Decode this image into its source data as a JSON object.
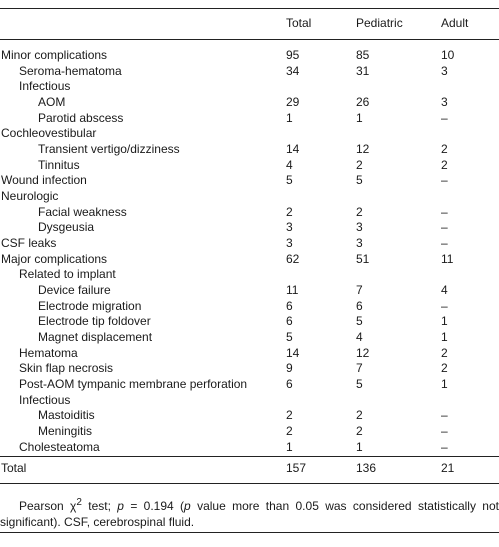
{
  "table": {
    "headers": [
      "",
      "Total",
      "Pediatric",
      "Adult"
    ],
    "rows": [
      {
        "label": "Minor complications",
        "level": 0,
        "total": "95",
        "pediatric": "85",
        "adult": "10"
      },
      {
        "label": "Seroma-hematoma",
        "level": 1,
        "total": "34",
        "pediatric": "31",
        "adult": "3"
      },
      {
        "label": "Infectious",
        "level": 1,
        "total": "",
        "pediatric": "",
        "adult": ""
      },
      {
        "label": "AOM",
        "level": 2,
        "total": "29",
        "pediatric": "26",
        "adult": "3"
      },
      {
        "label": "Parotid abscess",
        "level": 2,
        "total": "1",
        "pediatric": "1",
        "adult": "–"
      },
      {
        "label": "Cochleovestibular",
        "level": 0,
        "total": "",
        "pediatric": "",
        "adult": ""
      },
      {
        "label": "Transient vertigo/dizziness",
        "level": 2,
        "total": "14",
        "pediatric": "12",
        "adult": "2"
      },
      {
        "label": "Tinnitus",
        "level": 2,
        "total": "4",
        "pediatric": "2",
        "adult": "2"
      },
      {
        "label": "Wound infection",
        "level": 0,
        "total": "5",
        "pediatric": "5",
        "adult": "–"
      },
      {
        "label": "Neurologic",
        "level": 0,
        "total": "",
        "pediatric": "",
        "adult": ""
      },
      {
        "label": "Facial weakness",
        "level": 2,
        "total": "2",
        "pediatric": "2",
        "adult": "–"
      },
      {
        "label": "Dysgeusia",
        "level": 2,
        "total": "3",
        "pediatric": "3",
        "adult": "–"
      },
      {
        "label": "CSF leaks",
        "level": 0,
        "total": "3",
        "pediatric": "3",
        "adult": "–"
      },
      {
        "label": "Major complications",
        "level": 0,
        "total": "62",
        "pediatric": "51",
        "adult": "11"
      },
      {
        "label": "Related to implant",
        "level": 1,
        "total": "",
        "pediatric": "",
        "adult": ""
      },
      {
        "label": "Device failure",
        "level": 2,
        "total": "11",
        "pediatric": "7",
        "adult": "4"
      },
      {
        "label": "Electrode migration",
        "level": 2,
        "total": "6",
        "pediatric": "6",
        "adult": "–"
      },
      {
        "label": "Electrode tip foldover",
        "level": 2,
        "total": "6",
        "pediatric": "5",
        "adult": "1"
      },
      {
        "label": "Magnet displacement",
        "level": 2,
        "total": "5",
        "pediatric": "4",
        "adult": "1"
      },
      {
        "label": "Hematoma",
        "level": 1,
        "total": "14",
        "pediatric": "12",
        "adult": "2"
      },
      {
        "label": "Skin flap necrosis",
        "level": 1,
        "total": "9",
        "pediatric": "7",
        "adult": "2"
      },
      {
        "label": "Post-AOM tympanic membrane perforation",
        "level": 1,
        "total": "6",
        "pediatric": "5",
        "adult": "1"
      },
      {
        "label": "Infectious",
        "level": 1,
        "total": "",
        "pediatric": "",
        "adult": ""
      },
      {
        "label": "Mastoiditis",
        "level": 2,
        "total": "2",
        "pediatric": "2",
        "adult": "–"
      },
      {
        "label": "Meningitis",
        "level": 2,
        "total": "2",
        "pediatric": "2",
        "adult": "–"
      },
      {
        "label": "Cholesteatoma",
        "level": 1,
        "total": "1",
        "pediatric": "1",
        "adult": "–"
      }
    ],
    "total_row": {
      "label": "Total",
      "total": "157",
      "pediatric": "136",
      "adult": "21"
    }
  },
  "footnote": {
    "part1": "Pearson χ",
    "sup": "2",
    "part2": " test; ",
    "p_var": "p",
    "part3": " = 0.194 (",
    "p_var2": "p",
    "part4": " value more than 0.05 was considered statistically not significant). CSF, cerebrospinal fluid."
  }
}
